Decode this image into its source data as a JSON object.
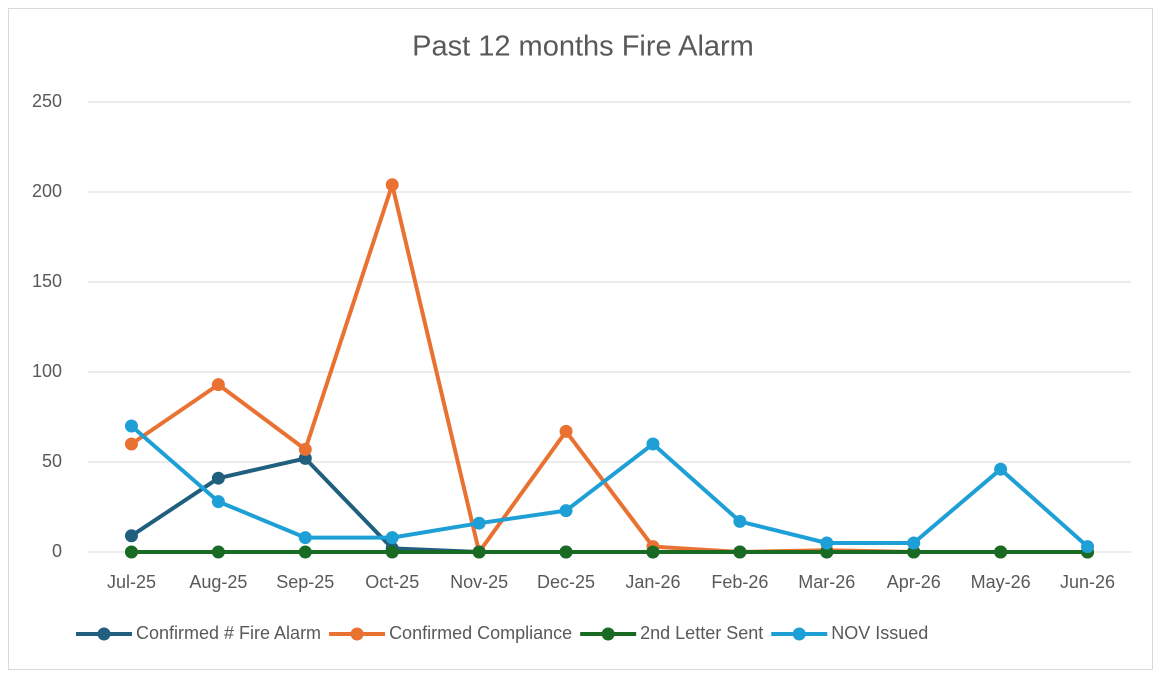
{
  "chart_data": {
    "type": "line",
    "title": "Past 12 months Fire Alarm",
    "categories": [
      "Jul-25",
      "Aug-25",
      "Sep-25",
      "Oct-25",
      "Nov-25",
      "Dec-25",
      "Jan-26",
      "Feb-26",
      "Mar-26",
      "Apr-26",
      "May-26",
      "Jun-26"
    ],
    "series": [
      {
        "name": "Confirmed # Fire Alarm",
        "color": "#215f7e",
        "values": [
          9,
          41,
          52,
          2,
          0,
          0,
          0,
          0,
          0,
          0,
          0,
          0
        ]
      },
      {
        "name": "Confirmed Compliance",
        "color": "#e97132",
        "values": [
          60,
          93,
          57,
          204,
          0,
          67,
          3,
          0,
          1,
          0,
          0,
          0
        ]
      },
      {
        "name": "2nd Letter Sent",
        "color": "#196b24",
        "values": [
          0,
          0,
          0,
          0,
          0,
          0,
          0,
          0,
          0,
          0,
          0,
          0
        ]
      },
      {
        "name": "NOV Issued",
        "color": "#1ea0d6",
        "values": [
          70,
          28,
          8,
          8,
          16,
          23,
          60,
          17,
          5,
          5,
          46,
          3
        ]
      }
    ],
    "ylim": [
      0,
      250
    ],
    "yticks": [
      0,
      50,
      100,
      150,
      200,
      250
    ],
    "grid": true,
    "legend": "bottom"
  }
}
